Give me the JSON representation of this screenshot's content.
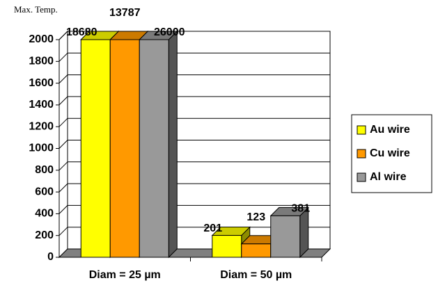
{
  "chart_data": {
    "type": "bar3d",
    "y_label": "Max. Temp.",
    "categories": [
      "Diam = 25 µm",
      "Diam = 50 µm"
    ],
    "series": [
      {
        "name": "Au wire",
        "color": "#ffff00",
        "values": [
          18680,
          201
        ]
      },
      {
        "name": "Cu wire",
        "color": "#ff9900",
        "values": [
          13787,
          123
        ]
      },
      {
        "name": "Al wire",
        "color": "#999999",
        "values": [
          26000,
          381
        ]
      }
    ],
    "ylim": [
      0,
      2000
    ],
    "yticks": [
      0,
      200,
      400,
      600,
      800,
      1000,
      1200,
      1400,
      1600,
      1800,
      2000
    ],
    "grid": true,
    "legend": "right"
  }
}
